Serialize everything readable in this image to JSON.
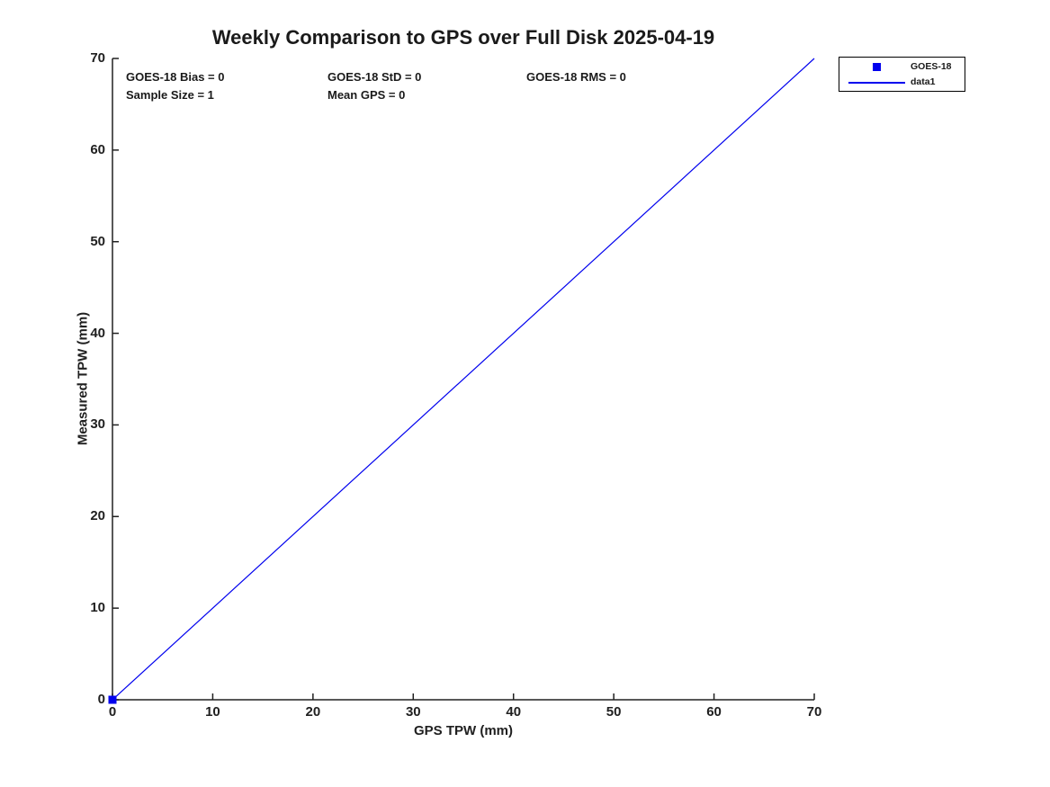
{
  "chart_data": {
    "type": "line",
    "title": "Weekly Comparison to GPS over Full Disk 2025-04-19",
    "xlabel": "GPS TPW (mm)",
    "ylabel": "Measured TPW (mm)",
    "xlim": [
      0,
      70
    ],
    "ylim": [
      0,
      70
    ],
    "xticks": [
      0,
      10,
      20,
      30,
      40,
      50,
      60,
      70
    ],
    "yticks": [
      0,
      10,
      20,
      30,
      40,
      50,
      60,
      70
    ],
    "grid": false,
    "legend_position": "outside-top-right",
    "series": [
      {
        "name": "GOES-18",
        "type": "scatter",
        "marker": "square",
        "color": "#0000EE",
        "points": [
          [
            0,
            0
          ]
        ]
      },
      {
        "name": "data1",
        "type": "line",
        "color": "#0000EE",
        "points": [
          [
            0,
            0
          ],
          [
            70,
            70
          ]
        ]
      }
    ],
    "annotations": [
      {
        "text": "GOES-18 Bias = 0",
        "row": 0,
        "col": 0
      },
      {
        "text": "GOES-18 StD = 0",
        "row": 0,
        "col": 1
      },
      {
        "text": "GOES-18 RMS = 0",
        "row": 0,
        "col": 2
      },
      {
        "text": "Sample Size = 1",
        "row": 1,
        "col": 0
      },
      {
        "text": "Mean GPS = 0",
        "row": 1,
        "col": 1
      }
    ]
  },
  "legend": {
    "items": [
      {
        "label": "GOES-18",
        "key": "square-marker"
      },
      {
        "label": "data1",
        "key": "line-sample"
      }
    ]
  },
  "colors": {
    "series_blue": "#0000EE",
    "axis": "#202020",
    "text": "#1a1a1a",
    "background": "#FFFFFF"
  }
}
